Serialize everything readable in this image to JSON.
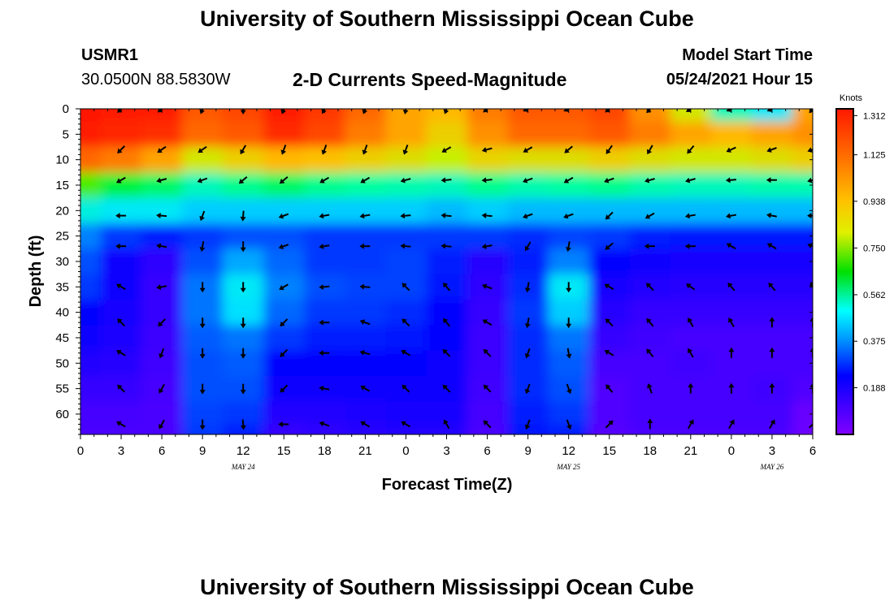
{
  "header": {
    "title": "University of Southern Mississippi Ocean Cube",
    "station": "USMR1",
    "coords": "30.0500N  88.5830W",
    "subtitle": "2-D Currents Speed-Magnitude",
    "model_label": "Model Start Time",
    "model_time": "05/24/2021 Hour 15",
    "footer_title": "University of Southern Mississippi Ocean Cube"
  },
  "chart_data": {
    "type": "heatmap",
    "title": "2-D Currents Speed-Magnitude",
    "xlabel": "Forecast Time(Z)",
    "ylabel": "Depth (ft)",
    "x_ticks": [
      "0",
      "3",
      "6",
      "9",
      "12",
      "15",
      "18",
      "21",
      "0",
      "3",
      "6",
      "9",
      "12",
      "15",
      "18",
      "21",
      "0",
      "3",
      "6"
    ],
    "x_range_hours": [
      0,
      54
    ],
    "date_labels": [
      {
        "text": "MAY 24",
        "hour": 12
      },
      {
        "text": "MAY 25",
        "hour": 36
      },
      {
        "text": "MAY 26",
        "hour": 51
      }
    ],
    "y_ticks": [
      0,
      5,
      10,
      15,
      20,
      25,
      30,
      35,
      40,
      45,
      50,
      55,
      60
    ],
    "y_range_ft": [
      0,
      64
    ],
    "colorbar": {
      "label": "Knots",
      "ticks": [
        "1.312",
        "1.125",
        "0.938",
        "0.750",
        "0.562",
        "0.375",
        "0.188"
      ],
      "range": [
        0.0,
        1.31
      ]
    },
    "speed_grid_knots": {
      "depths_ft": [
        0,
        5,
        10,
        15,
        20,
        25,
        30,
        35,
        40,
        45,
        50,
        55,
        60,
        64
      ],
      "hours": [
        0,
        3,
        6,
        9,
        12,
        15,
        18,
        21,
        24,
        27,
        30,
        33,
        36,
        39,
        42,
        45,
        48,
        51,
        54
      ],
      "rows": [
        [
          1.3,
          1.28,
          1.25,
          1.05,
          1.1,
          1.25,
          1.15,
          1.0,
          0.85,
          0.8,
          0.95,
          1.05,
          1.05,
          1.1,
          0.9,
          0.7,
          0.45,
          0.4,
          0.85
        ],
        [
          1.25,
          1.22,
          1.18,
          1.0,
          1.05,
          1.2,
          1.1,
          0.95,
          0.85,
          0.75,
          0.9,
          1.0,
          1.0,
          1.05,
          0.95,
          0.85,
          0.8,
          0.85,
          0.9
        ],
        [
          1.0,
          0.95,
          0.85,
          0.7,
          0.75,
          0.8,
          0.78,
          0.75,
          0.72,
          0.68,
          0.74,
          0.72,
          0.72,
          0.75,
          0.72,
          0.7,
          0.7,
          0.72,
          0.75
        ],
        [
          0.6,
          0.52,
          0.5,
          0.45,
          0.48,
          0.5,
          0.48,
          0.47,
          0.46,
          0.45,
          0.48,
          0.46,
          0.47,
          0.48,
          0.46,
          0.45,
          0.45,
          0.46,
          0.46
        ],
        [
          0.42,
          0.4,
          0.4,
          0.38,
          0.38,
          0.38,
          0.38,
          0.38,
          0.38,
          0.37,
          0.38,
          0.37,
          0.37,
          0.37,
          0.37,
          0.37,
          0.37,
          0.37,
          0.37
        ],
        [
          0.34,
          0.28,
          0.26,
          0.28,
          0.3,
          0.3,
          0.28,
          0.28,
          0.28,
          0.28,
          0.28,
          0.27,
          0.29,
          0.28,
          0.26,
          0.25,
          0.25,
          0.25,
          0.25
        ],
        [
          0.3,
          0.22,
          0.16,
          0.3,
          0.36,
          0.32,
          0.28,
          0.28,
          0.29,
          0.26,
          0.17,
          0.26,
          0.34,
          0.24,
          0.21,
          0.2,
          0.2,
          0.2,
          0.2
        ],
        [
          0.28,
          0.21,
          0.15,
          0.33,
          0.4,
          0.34,
          0.3,
          0.29,
          0.29,
          0.25,
          0.16,
          0.27,
          0.4,
          0.2,
          0.18,
          0.17,
          0.17,
          0.17,
          0.17
        ],
        [
          0.24,
          0.2,
          0.15,
          0.33,
          0.39,
          0.32,
          0.28,
          0.28,
          0.27,
          0.24,
          0.15,
          0.28,
          0.38,
          0.17,
          0.15,
          0.15,
          0.15,
          0.15,
          0.15
        ],
        [
          0.22,
          0.19,
          0.14,
          0.31,
          0.33,
          0.28,
          0.26,
          0.26,
          0.25,
          0.23,
          0.14,
          0.27,
          0.33,
          0.15,
          0.13,
          0.12,
          0.12,
          0.12,
          0.12
        ],
        [
          0.18,
          0.17,
          0.13,
          0.3,
          0.31,
          0.24,
          0.23,
          0.24,
          0.23,
          0.22,
          0.14,
          0.27,
          0.31,
          0.12,
          0.12,
          0.13,
          0.12,
          0.12,
          0.12
        ],
        [
          0.15,
          0.15,
          0.12,
          0.3,
          0.3,
          0.22,
          0.21,
          0.22,
          0.22,
          0.22,
          0.13,
          0.27,
          0.3,
          0.1,
          0.12,
          0.12,
          0.12,
          0.13,
          0.1
        ],
        [
          0.12,
          0.12,
          0.11,
          0.29,
          0.28,
          0.18,
          0.18,
          0.19,
          0.2,
          0.2,
          0.12,
          0.26,
          0.28,
          0.1,
          0.12,
          0.12,
          0.12,
          0.12,
          0.05
        ],
        [
          0.11,
          0.11,
          0.11,
          0.28,
          0.26,
          0.15,
          0.16,
          0.17,
          0.18,
          0.18,
          0.11,
          0.25,
          0.26,
          0.09,
          0.11,
          0.11,
          0.11,
          0.11,
          0.04
        ]
      ]
    },
    "vectors": {
      "note": "arrow direction in degrees (0 = up, clockwise) at each depth row x hour column",
      "hours": [
        3,
        6,
        9,
        12,
        15,
        18,
        21,
        24,
        27,
        30,
        33,
        36,
        39,
        42,
        45,
        48,
        51,
        54
      ],
      "depths_ft": [
        0,
        8,
        14,
        21,
        27,
        35,
        42,
        48,
        55,
        62
      ],
      "rows": [
        [
          225,
          230,
          200,
          180,
          200,
          205,
          200,
          190,
          200,
          230,
          245,
          245,
          230,
          220,
          235,
          245,
          245,
          220
        ],
        [
          225,
          235,
          235,
          210,
          200,
          200,
          200,
          200,
          240,
          255,
          240,
          230,
          215,
          210,
          220,
          245,
          250,
          250
        ],
        [
          240,
          255,
          250,
          230,
          230,
          240,
          240,
          255,
          265,
          265,
          250,
          240,
          250,
          255,
          255,
          265,
          270,
          255
        ],
        [
          270,
          275,
          200,
          185,
          250,
          260,
          260,
          265,
          275,
          275,
          250,
          250,
          225,
          240,
          260,
          260,
          280,
          270
        ],
        [
          270,
          280,
          190,
          180,
          250,
          260,
          270,
          275,
          275,
          260,
          210,
          190,
          230,
          270,
          270,
          300,
          300,
          290
        ],
        [
          300,
          260,
          180,
          180,
          240,
          265,
          275,
          315,
          320,
          290,
          190,
          180,
          300,
          315,
          305,
          320,
          320,
          340
        ],
        [
          315,
          225,
          180,
          180,
          225,
          270,
          290,
          315,
          320,
          300,
          190,
          180,
          315,
          320,
          330,
          330,
          360,
          360
        ],
        [
          300,
          200,
          180,
          180,
          225,
          270,
          285,
          300,
          315,
          315,
          200,
          170,
          300,
          320,
          330,
          360,
          360,
          360
        ],
        [
          315,
          210,
          180,
          180,
          225,
          280,
          300,
          315,
          315,
          315,
          200,
          160,
          320,
          340,
          360,
          360,
          360,
          360
        ],
        [
          300,
          210,
          180,
          175,
          270,
          290,
          300,
          300,
          330,
          315,
          200,
          160,
          45,
          360,
          30,
          30,
          30,
          45
        ]
      ]
    }
  }
}
